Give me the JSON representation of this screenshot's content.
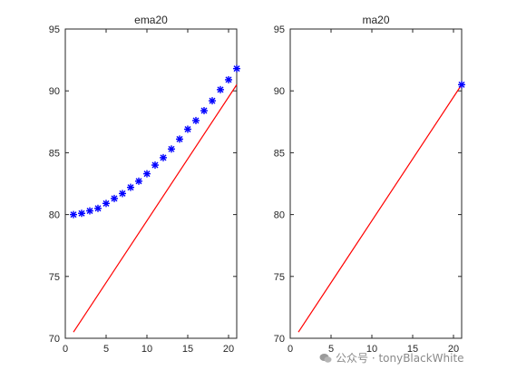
{
  "chart_data": [
    {
      "type": "line",
      "title": "ema20",
      "xlabel": "",
      "ylabel": "",
      "xlim": [
        0,
        21
      ],
      "ylim": [
        70,
        95
      ],
      "xticks": [
        0,
        5,
        10,
        15,
        20
      ],
      "yticks": [
        70,
        75,
        80,
        85,
        90,
        95
      ],
      "grid": false,
      "series": [
        {
          "style": "red-line",
          "color": "#ff0000",
          "x": [
            1,
            21
          ],
          "y": [
            70.5,
            90.5
          ]
        },
        {
          "style": "blue-star-markers",
          "color": "#0000ff",
          "x": [
            1,
            2,
            3,
            4,
            5,
            6,
            7,
            8,
            9,
            10,
            11,
            12,
            13,
            14,
            15,
            16,
            17,
            18,
            19,
            20,
            21
          ],
          "y": [
            80.0,
            80.1,
            80.3,
            80.5,
            80.9,
            81.3,
            81.7,
            82.2,
            82.7,
            83.3,
            84.0,
            84.6,
            85.3,
            86.1,
            86.9,
            87.6,
            88.4,
            89.2,
            90.1,
            90.9,
            91.8
          ]
        }
      ]
    },
    {
      "type": "line",
      "title": "ma20",
      "xlabel": "",
      "ylabel": "",
      "xlim": [
        0,
        21
      ],
      "ylim": [
        70,
        95
      ],
      "xticks": [
        0,
        5,
        10,
        15,
        20
      ],
      "yticks": [
        70,
        75,
        80,
        85,
        90,
        95
      ],
      "grid": false,
      "series": [
        {
          "style": "red-line",
          "color": "#ff0000",
          "x": [
            1,
            21
          ],
          "y": [
            70.5,
            90.5
          ]
        },
        {
          "style": "blue-star-markers",
          "color": "#0000ff",
          "x": [
            21
          ],
          "y": [
            90.5
          ]
        }
      ]
    }
  ],
  "watermark": {
    "text": "公众号 · tonyBlackWhite",
    "icon": "wechat-logo-icon"
  }
}
